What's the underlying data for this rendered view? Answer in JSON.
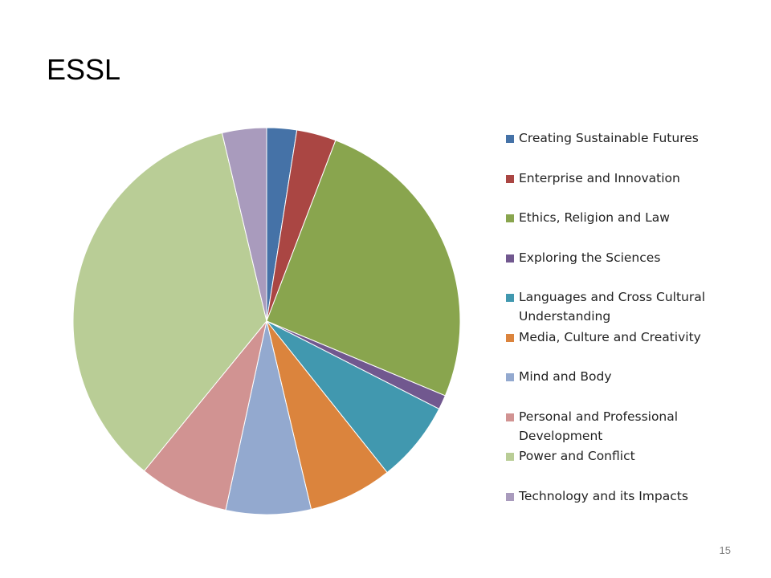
{
  "slide": {
    "title": "ESSL",
    "page_number": "15"
  },
  "chart_data": {
    "type": "pie",
    "title": "",
    "legend_position": "right",
    "categories": [
      "Creating Sustainable Futures",
      "Enterprise and Innovation",
      "Ethics, Religion and Law",
      "Exploring the Sciences",
      "Languages and Cross Cultural Understanding",
      "Media, Culture and Creativity",
      "Mind and Body",
      "Personal and Professional Development",
      "Power and Conflict",
      "Technology and its Impacts"
    ],
    "values": [
      2.5,
      3.3,
      25.5,
      1.2,
      6.8,
      7.0,
      7.1,
      7.5,
      35.4,
      3.7
    ],
    "colors": [
      "#4572A7",
      "#AA4643",
      "#89A54E",
      "#71588F",
      "#4198AF",
      "#DB843D",
      "#93A9CF",
      "#D19392",
      "#B9CD96",
      "#A99BBD"
    ]
  }
}
